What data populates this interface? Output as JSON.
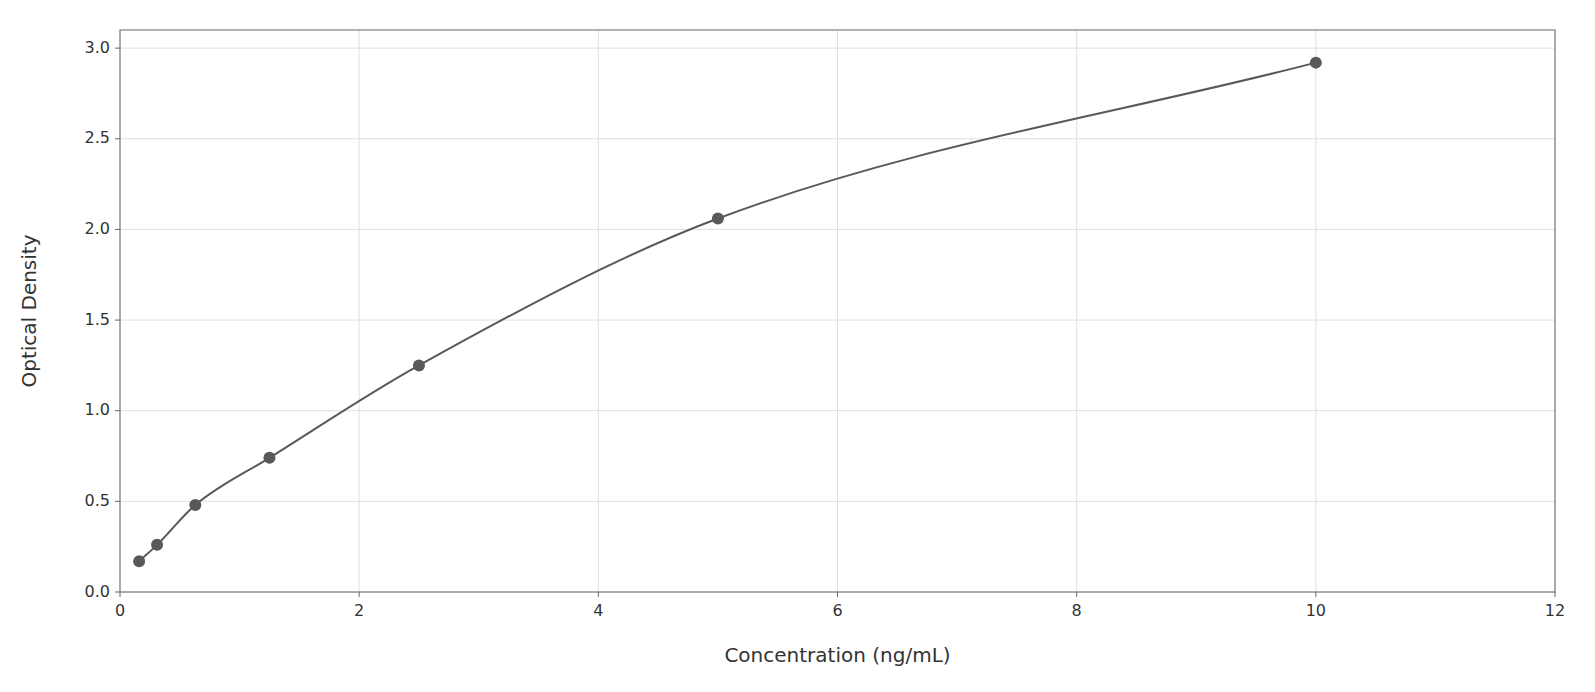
{
  "chart_data": {
    "type": "line",
    "marker": "circle",
    "color": "#595959",
    "xlabel": "Concentration (ng/mL)",
    "ylabel": "Optical Density",
    "x": [
      0.16,
      0.31,
      0.63,
      1.25,
      2.5,
      5.0,
      10.0
    ],
    "values": [
      0.17,
      0.26,
      0.48,
      0.74,
      1.25,
      2.06,
      2.92
    ],
    "xlim": [
      0,
      12
    ],
    "xticks": [
      0,
      2,
      4,
      6,
      8,
      10,
      12
    ],
    "ylim": [
      0,
      3.1
    ],
    "yticks": [
      {
        "value": 0,
        "label": "0.0"
      },
      0.5,
      {
        "value": 1.0,
        "label": "1.0"
      },
      1.5,
      {
        "value": 2.0,
        "label": "2.0"
      },
      2.5,
      {
        "value": 3.0,
        "label": "3.0"
      }
    ],
    "grid": true
  }
}
